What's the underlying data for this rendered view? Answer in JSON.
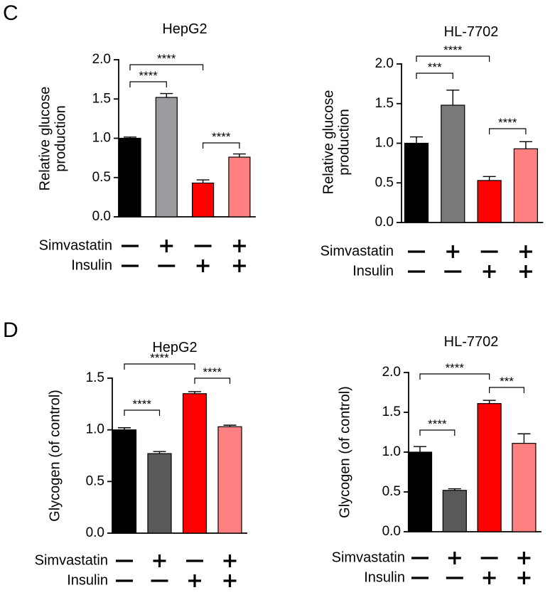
{
  "panels": [
    {
      "letter": "C"
    },
    {
      "letter": "D"
    }
  ],
  "condition_labels": {
    "simvastatin": "Simvastatin",
    "insulin": "Insulin"
  },
  "chart_data": [
    {
      "type": "bar",
      "panel": "C",
      "title": "HepG2",
      "ylabel": "Relative glucose production",
      "ylabel_lines": [
        "Relative glucose",
        "production"
      ],
      "ylim": [
        0,
        2.0
      ],
      "yticks": [
        0.0,
        0.5,
        1.0,
        1.5,
        2.0
      ],
      "ytick_labels": [
        "0.0",
        "0.5",
        "1.0",
        "1.5",
        "2.0"
      ],
      "values": [
        1.0,
        1.52,
        0.43,
        0.76
      ],
      "errors": [
        0.015,
        0.05,
        0.04,
        0.04
      ],
      "colors": [
        "#000000",
        "#9b9b9f",
        "#ff0000",
        "#ff8080"
      ],
      "simvastatin": [
        "−",
        "+",
        "−",
        "+"
      ],
      "insulin": [
        "−",
        "−",
        "+",
        "+"
      ],
      "significance": [
        {
          "from": 0,
          "to": 2,
          "label": "****"
        },
        {
          "from": 0,
          "to": 1,
          "label": "****"
        },
        {
          "from": 2,
          "to": 3,
          "label": "****"
        }
      ]
    },
    {
      "type": "bar",
      "panel": "C",
      "title": "HL-7702",
      "ylabel": "Relative glucose production",
      "ylabel_lines": [
        "Relative glucose",
        "production"
      ],
      "ylim": [
        0,
        2.0
      ],
      "yticks": [
        0.0,
        0.5,
        1.0,
        1.5,
        2.0
      ],
      "ytick_labels": [
        "0.0",
        "0.5",
        "1.0",
        "1.5",
        "2.0"
      ],
      "values": [
        1.0,
        1.48,
        0.53,
        0.93
      ],
      "errors": [
        0.08,
        0.19,
        0.05,
        0.09
      ],
      "colors": [
        "#000000",
        "#7a7a7a",
        "#ff0000",
        "#ff8080"
      ],
      "simvastatin": [
        "−",
        "+",
        "−",
        "+"
      ],
      "insulin": [
        "−",
        "−",
        "+",
        "+"
      ],
      "significance": [
        {
          "from": 0,
          "to": 2,
          "label": "****"
        },
        {
          "from": 0,
          "to": 1,
          "label": "***"
        },
        {
          "from": 2,
          "to": 3,
          "label": "****"
        }
      ]
    },
    {
      "type": "bar",
      "panel": "D",
      "title": "HepG2",
      "ylabel": "Glycogen (of control)",
      "ylabel_lines": [
        "Glycogen (of control)"
      ],
      "ylim": [
        0,
        1.5
      ],
      "yticks": [
        0.0,
        0.5,
        1.0,
        1.5
      ],
      "ytick_labels": [
        "0.0",
        "0.5",
        "1.0",
        "1.5"
      ],
      "values": [
        1.0,
        0.77,
        1.35,
        1.03
      ],
      "errors": [
        0.02,
        0.02,
        0.02,
        0.015
      ],
      "colors": [
        "#000000",
        "#595959",
        "#ff0000",
        "#ff8080"
      ],
      "simvastatin": [
        "−",
        "+",
        "−",
        "+"
      ],
      "insulin": [
        "−",
        "−",
        "+",
        "+"
      ],
      "significance": [
        {
          "from": 0,
          "to": 2,
          "label": "****"
        },
        {
          "from": 0,
          "to": 1,
          "label": "****"
        },
        {
          "from": 2,
          "to": 3,
          "label": "****"
        }
      ]
    },
    {
      "type": "bar",
      "panel": "D",
      "title": "HL-7702",
      "ylabel": "Glycogen (of control)",
      "ylabel_lines": [
        "Glycogen (of control)"
      ],
      "ylim": [
        0,
        2.0
      ],
      "yticks": [
        0.0,
        0.5,
        1.0,
        1.5,
        2.0
      ],
      "ytick_labels": [
        "0.0",
        "0.5",
        "1.0",
        "1.5",
        "2.0"
      ],
      "values": [
        1.0,
        0.52,
        1.61,
        1.11
      ],
      "errors": [
        0.07,
        0.02,
        0.04,
        0.12
      ],
      "colors": [
        "#000000",
        "#595959",
        "#ff0000",
        "#ff8080"
      ],
      "simvastatin": [
        "−",
        "+",
        "−",
        "+"
      ],
      "insulin": [
        "−",
        "−",
        "+",
        "+"
      ],
      "significance": [
        {
          "from": 0,
          "to": 2,
          "label": "****"
        },
        {
          "from": 0,
          "to": 1,
          "label": "****"
        },
        {
          "from": 2,
          "to": 3,
          "label": "***"
        }
      ]
    }
  ]
}
